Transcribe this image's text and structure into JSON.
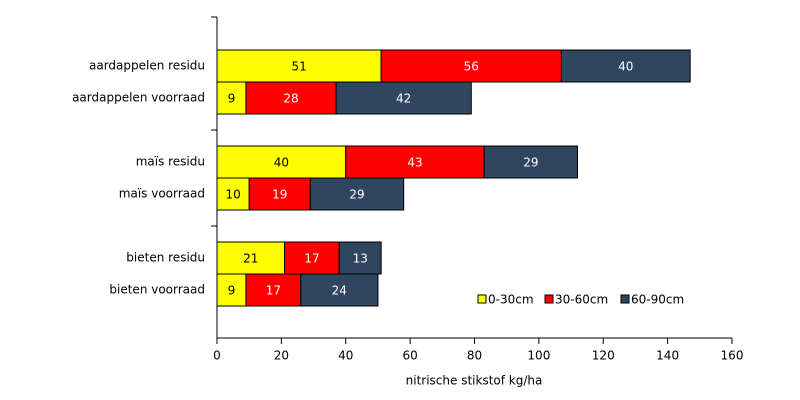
{
  "chart_data": {
    "type": "stacked-barh",
    "x_label": "nitrische stikstof kg/ha",
    "categories": [
      "aardappelen residu",
      "aardappelen voorraad",
      "maïs residu",
      "maïs voorraad",
      "bieten residu",
      "bieten voorraad"
    ],
    "series": [
      {
        "name": "0-30cm",
        "color": "#ffff00",
        "values": [
          51,
          9,
          40,
          10,
          21,
          9
        ]
      },
      {
        "name": "30-60cm",
        "color": "#ff0000",
        "values": [
          56,
          28,
          43,
          19,
          17,
          17
        ]
      },
      {
        "name": "60-90cm",
        "color": "#2f4560",
        "values": [
          40,
          42,
          29,
          29,
          13,
          24
        ]
      }
    ],
    "xlim": [
      0,
      160
    ],
    "xticks": [
      0,
      20,
      40,
      60,
      80,
      100,
      120,
      140,
      160
    ]
  }
}
